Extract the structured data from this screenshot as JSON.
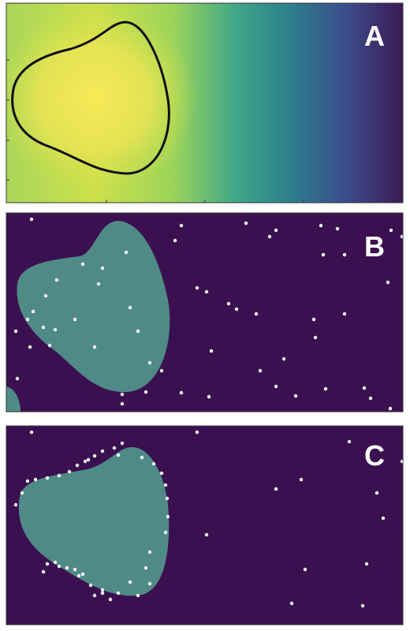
{
  "panels": [
    {
      "label": "A",
      "type": "heatmap",
      "colormap": "viridis",
      "contour": true
    },
    {
      "label": "B",
      "type": "region-with-points",
      "region_color": "#4f8a86",
      "background_color": "#3b1050",
      "point_color": "#ffffff"
    },
    {
      "label": "C",
      "type": "region-with-points",
      "region_color": "#4f8a86",
      "background_color": "#3b1050",
      "point_color": "#ffffff"
    }
  ]
}
